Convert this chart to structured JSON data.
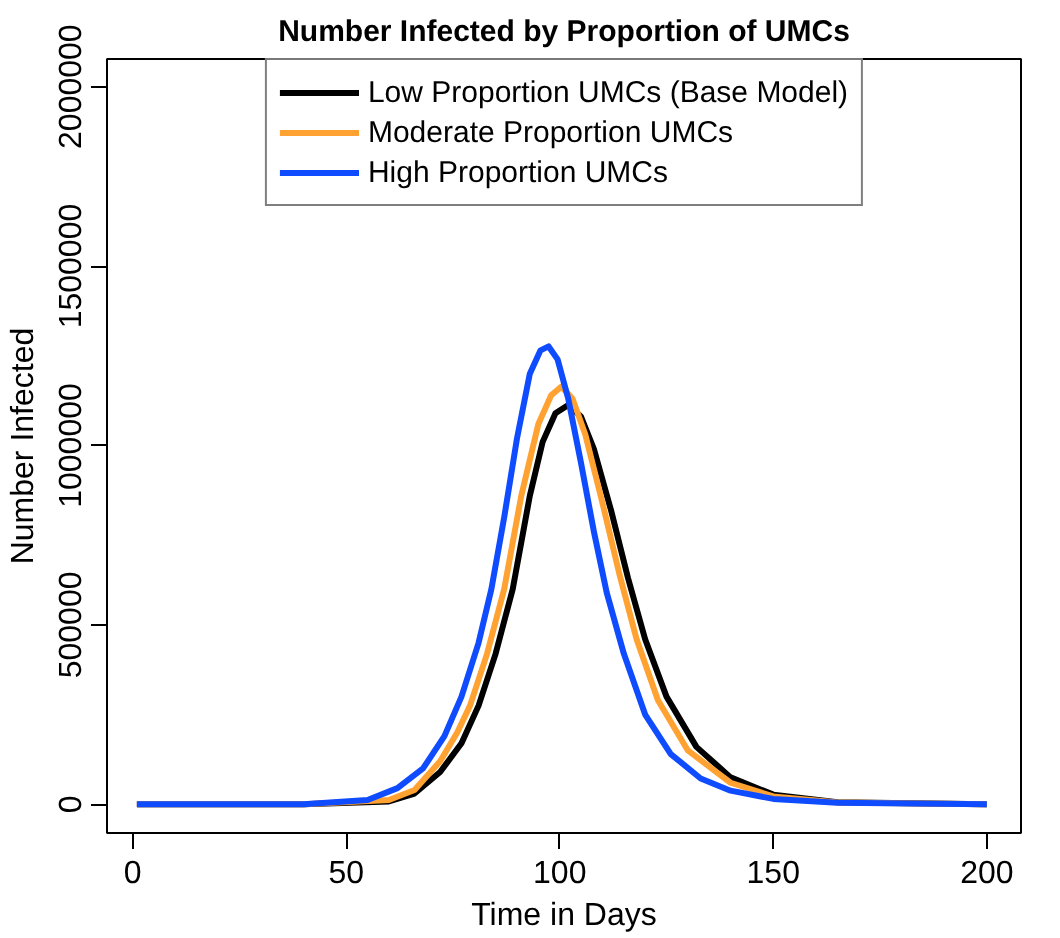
{
  "chart_data": {
    "type": "line",
    "title": "Number Infected by Proportion of UMCs",
    "xlabel": "Time in Days",
    "ylabel": "Number Infected",
    "xlim": [
      -6,
      208
    ],
    "xticks": [
      0,
      50,
      100,
      150,
      200
    ],
    "ylim": [
      -80000,
      2077000
    ],
    "yticks": [
      0,
      500000,
      1000000,
      1500000,
      2000000
    ],
    "grid": false,
    "legend": "top",
    "marker": "none",
    "line_style": "solid",
    "series": [
      {
        "name": "Low Proportion UMCs (Base Model)",
        "color": "#000000",
        "x": [
          1,
          40,
          60,
          66,
          72,
          77,
          81,
          85,
          89,
          93,
          96,
          99,
          102,
          105,
          108,
          112,
          116,
          120,
          125,
          132,
          140,
          150,
          165,
          200
        ],
        "values": [
          0,
          0,
          8000,
          30000,
          90000,
          170000,
          275000,
          420000,
          600000,
          860000,
          1010000,
          1090000,
          1113000,
          1080000,
          990000,
          820000,
          630000,
          460000,
          300000,
          160000,
          75000,
          27000,
          6000,
          0
        ]
      },
      {
        "name": "Moderate Proportion UMCs",
        "color": "#ffa232",
        "x": [
          1,
          40,
          60,
          66,
          72,
          76,
          79,
          83,
          87,
          91,
          95,
          98,
          100.4,
          103,
          106,
          110,
          114,
          118,
          123,
          130,
          140,
          150,
          165,
          200
        ],
        "values": [
          0,
          0,
          12000,
          40000,
          120000,
          200000,
          275000,
          420000,
          600000,
          860000,
          1060000,
          1140000,
          1164000,
          1130000,
          1030000,
          840000,
          640000,
          460000,
          290000,
          150000,
          60000,
          22000,
          5000,
          0
        ]
      },
      {
        "name": "High Proportion UMCs",
        "color": "#0f4cff",
        "x": [
          1,
          40,
          55,
          62,
          68,
          73,
          77,
          81,
          84,
          87,
          90,
          93,
          95.5,
          97.4,
          99.5,
          102,
          105,
          108,
          111,
          115,
          120,
          126,
          133,
          140,
          150,
          165,
          200
        ],
        "values": [
          0,
          0,
          12000,
          45000,
          100000,
          190000,
          300000,
          450000,
          600000,
          800000,
          1020000,
          1200000,
          1265000,
          1276000,
          1240000,
          1130000,
          950000,
          760000,
          590000,
          420000,
          250000,
          140000,
          72000,
          38000,
          15000,
          4000,
          0
        ]
      }
    ]
  }
}
